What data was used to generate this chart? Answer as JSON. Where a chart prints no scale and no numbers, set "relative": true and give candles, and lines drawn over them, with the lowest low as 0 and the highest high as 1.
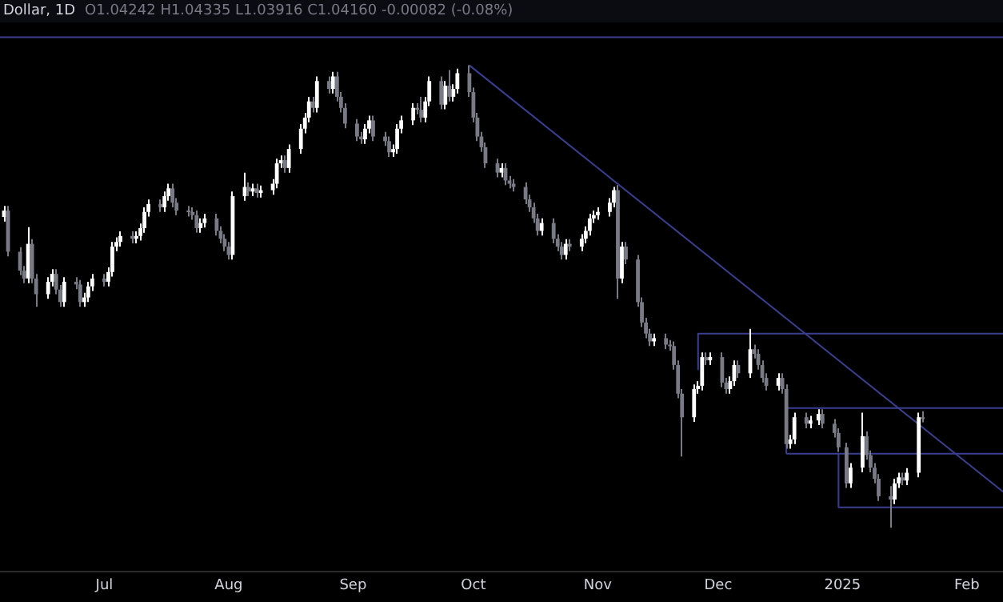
{
  "chart_data": {
    "type": "candlestick",
    "title": "Dollar, 1D",
    "subtitle": "O1.04242 H1.04335 L1.03916 C1.04160 -0.00082 (-0.08%)",
    "relative": true,
    "tick_labels": "x",
    "xlim": [
      "2024-06-05",
      "2025-02-10"
    ],
    "xticks": [
      {
        "value": "2024-07-01",
        "label": "Jul"
      },
      {
        "value": "2024-08-01",
        "label": "Aug"
      },
      {
        "value": "2024-09-01",
        "label": "Sep"
      },
      {
        "value": "2024-10-01",
        "label": "Oct"
      },
      {
        "value": "2024-11-01",
        "label": "Nov"
      },
      {
        "value": "2024-12-01",
        "label": "Dec"
      },
      {
        "value": "2025-01-01",
        "label": "2025"
      },
      {
        "value": "2025-02-01",
        "label": "Feb"
      }
    ],
    "x": [
      "2024-06-06",
      "2024-06-07",
      "2024-06-10",
      "2024-06-11",
      "2024-06-12",
      "2024-06-13",
      "2024-06-14",
      "2024-06-17",
      "2024-06-18",
      "2024-06-19",
      "2024-06-20",
      "2024-06-21",
      "2024-06-24",
      "2024-06-25",
      "2024-06-26",
      "2024-06-27",
      "2024-06-28",
      "2024-07-01",
      "2024-07-02",
      "2024-07-03",
      "2024-07-04",
      "2024-07-05",
      "2024-07-08",
      "2024-07-09",
      "2024-07-10",
      "2024-07-11",
      "2024-07-12",
      "2024-07-15",
      "2024-07-16",
      "2024-07-17",
      "2024-07-18",
      "2024-07-19",
      "2024-07-22",
      "2024-07-23",
      "2024-07-24",
      "2024-07-25",
      "2024-07-26",
      "2024-07-29",
      "2024-07-30",
      "2024-07-31",
      "2024-08-01",
      "2024-08-02",
      "2024-08-05",
      "2024-08-06",
      "2024-08-07",
      "2024-08-08",
      "2024-08-09",
      "2024-08-12",
      "2024-08-13",
      "2024-08-14",
      "2024-08-15",
      "2024-08-16",
      "2024-08-19",
      "2024-08-20",
      "2024-08-21",
      "2024-08-22",
      "2024-08-23",
      "2024-08-26",
      "2024-08-27",
      "2024-08-28",
      "2024-08-29",
      "2024-08-30",
      "2024-09-02",
      "2024-09-03",
      "2024-09-04",
      "2024-09-05",
      "2024-09-06",
      "2024-09-09",
      "2024-09-10",
      "2024-09-11",
      "2024-09-12",
      "2024-09-13",
      "2024-09-16",
      "2024-09-17",
      "2024-09-18",
      "2024-09-19",
      "2024-09-20",
      "2024-09-23",
      "2024-09-24",
      "2024-09-25",
      "2024-09-26",
      "2024-09-27",
      "2024-09-30",
      "2024-10-01",
      "2024-10-02",
      "2024-10-03",
      "2024-10-04",
      "2024-10-07",
      "2024-10-08",
      "2024-10-09",
      "2024-10-10",
      "2024-10-11",
      "2024-10-14",
      "2024-10-15",
      "2024-10-16",
      "2024-10-17",
      "2024-10-18",
      "2024-10-21",
      "2024-10-22",
      "2024-10-23",
      "2024-10-24",
      "2024-10-25",
      "2024-10-28",
      "2024-10-29",
      "2024-10-30",
      "2024-10-31",
      "2024-11-01",
      "2024-11-04",
      "2024-11-05",
      "2024-11-06",
      "2024-11-07",
      "2024-11-08",
      "2024-11-11",
      "2024-11-12",
      "2024-11-13",
      "2024-11-14",
      "2024-11-15",
      "2024-11-18",
      "2024-11-19",
      "2024-11-20",
      "2024-11-21",
      "2024-11-22",
      "2024-11-25",
      "2024-11-26",
      "2024-11-27",
      "2024-11-28",
      "2024-11-29",
      "2024-12-02",
      "2024-12-03",
      "2024-12-04",
      "2024-12-05",
      "2024-12-06",
      "2024-12-09",
      "2024-12-10",
      "2024-12-11",
      "2024-12-12",
      "2024-12-13",
      "2024-12-16",
      "2024-12-17",
      "2024-12-18",
      "2024-12-19",
      "2024-12-20",
      "2024-12-23",
      "2024-12-24",
      "2024-12-26",
      "2024-12-27",
      "2024-12-30",
      "2024-12-31",
      "2025-01-02",
      "2025-01-03",
      "2025-01-06",
      "2025-01-07",
      "2025-01-08",
      "2025-01-09",
      "2025-01-10",
      "2025-01-13",
      "2025-01-14",
      "2025-01-15",
      "2025-01-16",
      "2025-01-17",
      "2025-01-20",
      "2025-01-21"
    ],
    "ohlc": [
      [
        0.672,
        0.696,
        0.662,
        0.686
      ],
      [
        0.686,
        0.696,
        0.587,
        0.597
      ],
      [
        0.597,
        0.607,
        0.546,
        0.556
      ],
      [
        0.556,
        0.566,
        0.529,
        0.539
      ],
      [
        0.539,
        0.65,
        0.529,
        0.614
      ],
      [
        0.614,
        0.624,
        0.529,
        0.539
      ],
      [
        0.539,
        0.549,
        0.478,
        0.505
      ],
      [
        0.505,
        0.542,
        0.495,
        0.532
      ],
      [
        0.532,
        0.559,
        0.522,
        0.549
      ],
      [
        0.549,
        0.559,
        0.505,
        0.515
      ],
      [
        0.515,
        0.525,
        0.478,
        0.488
      ],
      [
        0.488,
        0.542,
        0.478,
        0.532
      ],
      [
        0.532,
        0.542,
        0.516,
        0.526
      ],
      [
        0.526,
        0.536,
        0.478,
        0.488
      ],
      [
        0.488,
        0.508,
        0.478,
        0.498
      ],
      [
        0.498,
        0.532,
        0.488,
        0.522
      ],
      [
        0.522,
        0.549,
        0.512,
        0.539
      ],
      [
        0.539,
        0.549,
        0.522,
        0.532
      ],
      [
        0.532,
        0.563,
        0.522,
        0.553
      ],
      [
        0.553,
        0.618,
        0.543,
        0.608
      ],
      [
        0.608,
        0.628,
        0.598,
        0.618
      ],
      [
        0.618,
        0.641,
        0.608,
        0.631
      ],
      [
        0.631,
        0.641,
        0.615,
        0.625
      ],
      [
        0.625,
        0.641,
        0.615,
        0.631
      ],
      [
        0.631,
        0.658,
        0.621,
        0.648
      ],
      [
        0.648,
        0.693,
        0.638,
        0.683
      ],
      [
        0.683,
        0.71,
        0.673,
        0.7
      ],
      [
        0.7,
        0.71,
        0.683,
        0.693
      ],
      [
        0.693,
        0.727,
        0.683,
        0.717
      ],
      [
        0.717,
        0.744,
        0.707,
        0.734
      ],
      [
        0.734,
        0.744,
        0.693,
        0.703
      ],
      [
        0.703,
        0.713,
        0.676,
        0.686
      ],
      [
        0.686,
        0.696,
        0.673,
        0.683
      ],
      [
        0.683,
        0.693,
        0.666,
        0.676
      ],
      [
        0.676,
        0.686,
        0.638,
        0.648
      ],
      [
        0.648,
        0.669,
        0.638,
        0.659
      ],
      [
        0.659,
        0.679,
        0.649,
        0.669
      ],
      [
        0.669,
        0.679,
        0.632,
        0.642
      ],
      [
        0.642,
        0.652,
        0.615,
        0.625
      ],
      [
        0.625,
        0.635,
        0.598,
        0.608
      ],
      [
        0.608,
        0.618,
        0.58,
        0.59
      ],
      [
        0.59,
        0.727,
        0.58,
        0.717
      ],
      [
        0.717,
        0.768,
        0.707,
        0.737
      ],
      [
        0.737,
        0.747,
        0.717,
        0.727
      ],
      [
        0.727,
        0.744,
        0.717,
        0.734
      ],
      [
        0.734,
        0.744,
        0.714,
        0.724
      ],
      [
        0.724,
        0.74,
        0.714,
        0.73
      ],
      [
        0.73,
        0.754,
        0.72,
        0.744
      ],
      [
        0.744,
        0.798,
        0.734,
        0.788
      ],
      [
        0.788,
        0.805,
        0.778,
        0.795
      ],
      [
        0.795,
        0.805,
        0.768,
        0.778
      ],
      [
        0.778,
        0.829,
        0.768,
        0.819
      ],
      [
        0.819,
        0.873,
        0.809,
        0.863
      ],
      [
        0.863,
        0.897,
        0.853,
        0.887
      ],
      [
        0.887,
        0.932,
        0.877,
        0.922
      ],
      [
        0.922,
        0.932,
        0.898,
        0.908
      ],
      [
        0.908,
        0.976,
        0.898,
        0.966
      ],
      [
        0.966,
        0.976,
        0.939,
        0.949
      ],
      [
        0.949,
        0.986,
        0.939,
        0.976
      ],
      [
        0.976,
        0.986,
        0.922,
        0.932
      ],
      [
        0.932,
        0.942,
        0.898,
        0.908
      ],
      [
        0.908,
        0.918,
        0.864,
        0.874
      ],
      [
        0.874,
        0.884,
        0.836,
        0.846
      ],
      [
        0.846,
        0.856,
        0.83,
        0.84
      ],
      [
        0.84,
        0.873,
        0.83,
        0.863
      ],
      [
        0.863,
        0.891,
        0.853,
        0.881
      ],
      [
        0.881,
        0.891,
        0.836,
        0.846
      ],
      [
        0.846,
        0.856,
        0.826,
        0.836
      ],
      [
        0.836,
        0.846,
        0.802,
        0.812
      ],
      [
        0.812,
        0.829,
        0.802,
        0.819
      ],
      [
        0.819,
        0.873,
        0.809,
        0.863
      ],
      [
        0.863,
        0.891,
        0.853,
        0.881
      ],
      [
        0.881,
        0.918,
        0.871,
        0.908
      ],
      [
        0.908,
        0.918,
        0.894,
        0.904
      ],
      [
        0.904,
        0.932,
        0.877,
        0.887
      ],
      [
        0.887,
        0.932,
        0.877,
        0.922
      ],
      [
        0.922,
        0.976,
        0.912,
        0.966
      ],
      [
        0.966,
        0.976,
        0.905,
        0.915
      ],
      [
        0.915,
        0.966,
        0.905,
        0.956
      ],
      [
        0.956,
        0.99,
        0.922,
        0.932
      ],
      [
        0.932,
        0.959,
        0.922,
        0.949
      ],
      [
        0.949,
        0.993,
        0.939,
        0.983
      ],
      [
        0.983,
        1,
        0.932,
        0.942
      ],
      [
        0.942,
        0.952,
        0.877,
        0.887
      ],
      [
        0.887,
        0.897,
        0.836,
        0.846
      ],
      [
        0.846,
        0.856,
        0.813,
        0.823
      ],
      [
        0.823,
        0.833,
        0.778,
        0.788
      ],
      [
        0.788,
        0.798,
        0.758,
        0.768
      ],
      [
        0.768,
        0.788,
        0.758,
        0.778
      ],
      [
        0.778,
        0.788,
        0.741,
        0.751
      ],
      [
        0.751,
        0.761,
        0.734,
        0.744
      ],
      [
        0.744,
        0.754,
        0.727,
        0.737
      ],
      [
        0.737,
        0.747,
        0.7,
        0.71
      ],
      [
        0.71,
        0.72,
        0.683,
        0.693
      ],
      [
        0.693,
        0.703,
        0.659,
        0.669
      ],
      [
        0.669,
        0.679,
        0.632,
        0.642
      ],
      [
        0.642,
        0.669,
        0.632,
        0.659
      ],
      [
        0.659,
        0.669,
        0.615,
        0.625
      ],
      [
        0.625,
        0.635,
        0.598,
        0.608
      ],
      [
        0.608,
        0.618,
        0.58,
        0.59
      ],
      [
        0.59,
        0.624,
        0.58,
        0.614
      ],
      [
        0.614,
        0.624,
        0.598,
        0.608
      ],
      [
        0.608,
        0.635,
        0.598,
        0.625
      ],
      [
        0.625,
        0.652,
        0.615,
        0.642
      ],
      [
        0.642,
        0.679,
        0.632,
        0.669
      ],
      [
        0.669,
        0.686,
        0.659,
        0.676
      ],
      [
        0.676,
        0.693,
        0.666,
        0.683
      ],
      [
        0.683,
        0.713,
        0.673,
        0.703
      ],
      [
        0.703,
        0.737,
        0.693,
        0.73
      ],
      [
        0.73,
        0.741,
        0.495,
        0.539
      ],
      [
        0.539,
        0.618,
        0.529,
        0.608
      ],
      [
        0.608,
        0.618,
        0.57,
        0.58
      ],
      [
        0.58,
        0.59,
        0.478,
        0.488
      ],
      [
        0.488,
        0.498,
        0.434,
        0.444
      ],
      [
        0.444,
        0.454,
        0.41,
        0.42
      ],
      [
        0.42,
        0.43,
        0.393,
        0.403
      ],
      [
        0.403,
        0.42,
        0.393,
        0.41
      ],
      [
        0.41,
        0.42,
        0.386,
        0.396
      ],
      [
        0.396,
        0.406,
        0.383,
        0.393
      ],
      [
        0.393,
        0.403,
        0.342,
        0.352
      ],
      [
        0.352,
        0.362,
        0.28,
        0.29
      ],
      [
        0.29,
        0.3,
        0.154,
        0.239
      ],
      [
        0.239,
        0.31,
        0.229,
        0.3
      ],
      [
        0.3,
        0.317,
        0.29,
        0.307
      ],
      [
        0.307,
        0.379,
        0.297,
        0.369
      ],
      [
        0.369,
        0.379,
        0.352,
        0.362
      ],
      [
        0.362,
        0.379,
        0.352,
        0.369
      ],
      [
        0.369,
        0.379,
        0.304,
        0.314
      ],
      [
        0.314,
        0.324,
        0.29,
        0.3
      ],
      [
        0.3,
        0.327,
        0.29,
        0.317
      ],
      [
        0.317,
        0.362,
        0.307,
        0.352
      ],
      [
        0.352,
        0.362,
        0.324,
        0.334
      ],
      [
        0.334,
        0.43,
        0.324,
        0.386
      ],
      [
        0.386,
        0.396,
        0.366,
        0.376
      ],
      [
        0.376,
        0.386,
        0.342,
        0.352
      ],
      [
        0.352,
        0.362,
        0.314,
        0.324
      ],
      [
        0.324,
        0.334,
        0.297,
        0.307
      ],
      [
        0.307,
        0.334,
        0.297,
        0.324
      ],
      [
        0.324,
        0.334,
        0.29,
        0.3
      ],
      [
        0.3,
        0.31,
        0.171,
        0.181
      ],
      [
        0.181,
        0.201,
        0.171,
        0.191
      ],
      [
        0.191,
        0.249,
        0.181,
        0.239
      ],
      [
        0.239,
        0.249,
        0.215,
        0.225
      ],
      [
        0.225,
        0.242,
        0.215,
        0.232
      ],
      [
        0.232,
        0.256,
        0.222,
        0.246
      ],
      [
        0.246,
        0.256,
        0.215,
        0.225
      ],
      [
        0.225,
        0.235,
        0.195,
        0.205
      ],
      [
        0.205,
        0.215,
        0.164,
        0.174
      ],
      [
        0.174,
        0.184,
        0.086,
        0.096
      ],
      [
        0.096,
        0.14,
        0.086,
        0.13
      ],
      [
        0.13,
        0.249,
        0.12,
        0.198
      ],
      [
        0.198,
        0.208,
        0.147,
        0.157
      ],
      [
        0.157,
        0.167,
        0.12,
        0.13
      ],
      [
        0.13,
        0.14,
        0.096,
        0.106
      ],
      [
        0.106,
        0.116,
        0.058,
        0.068
      ],
      [
        0.068,
        0.09,
        0,
        0.061
      ],
      [
        0.061,
        0.106,
        0.051,
        0.096
      ],
      [
        0.096,
        0.119,
        0.086,
        0.109
      ],
      [
        0.109,
        0.119,
        0.092,
        0.102
      ],
      [
        0.102,
        0.129,
        0.092,
        0.119
      ],
      [
        0.119,
        0.249,
        0.109,
        0.239
      ],
      [
        0.239,
        0.252,
        0.228,
        0.235
      ]
    ],
    "colors": [
      "#ffffff",
      "#787b86",
      "#787b86",
      "#787b86",
      "#ffffff",
      "#787b86",
      "#787b86",
      "#ffffff",
      "#ffffff",
      "#787b86",
      "#787b86",
      "#ffffff",
      "#787b86",
      "#787b86",
      "#ffffff",
      "#ffffff",
      "#ffffff",
      "#787b86",
      "#ffffff",
      "#ffffff",
      "#ffffff",
      "#ffffff",
      "#787b86",
      "#ffffff",
      "#ffffff",
      "#ffffff",
      "#ffffff",
      "#787b86",
      "#ffffff",
      "#ffffff",
      "#787b86",
      "#787b86",
      "#787b86",
      "#787b86",
      "#787b86",
      "#ffffff",
      "#ffffff",
      "#787b86",
      "#787b86",
      "#787b86",
      "#787b86",
      "#ffffff",
      "#ffffff",
      "#787b86",
      "#ffffff",
      "#787b86",
      "#ffffff",
      "#ffffff",
      "#ffffff",
      "#ffffff",
      "#787b86",
      "#ffffff",
      "#ffffff",
      "#ffffff",
      "#ffffff",
      "#787b86",
      "#ffffff",
      "#787b86",
      "#ffffff",
      "#787b86",
      "#787b86",
      "#787b86",
      "#787b86",
      "#787b86",
      "#ffffff",
      "#ffffff",
      "#787b86",
      "#787b86",
      "#787b86",
      "#ffffff",
      "#ffffff",
      "#ffffff",
      "#ffffff",
      "#787b86",
      "#787b86",
      "#ffffff",
      "#ffffff",
      "#787b86",
      "#ffffff",
      "#787b86",
      "#ffffff",
      "#ffffff",
      "#787b86",
      "#787b86",
      "#787b86",
      "#787b86",
      "#787b86",
      "#787b86",
      "#ffffff",
      "#787b86",
      "#787b86",
      "#787b86",
      "#787b86",
      "#787b86",
      "#787b86",
      "#787b86",
      "#ffffff",
      "#787b86",
      "#787b86",
      "#787b86",
      "#ffffff",
      "#787b86",
      "#ffffff",
      "#ffffff",
      "#ffffff",
      "#ffffff",
      "#ffffff",
      "#ffffff",
      "#ffffff",
      "#787b86",
      "#ffffff",
      "#787b86",
      "#787b86",
      "#787b86",
      "#787b86",
      "#787b86",
      "#ffffff",
      "#787b86",
      "#787b86",
      "#787b86",
      "#787b86",
      "#787b86",
      "#ffffff",
      "#ffffff",
      "#ffffff",
      "#787b86",
      "#ffffff",
      "#787b86",
      "#787b86",
      "#ffffff",
      "#ffffff",
      "#787b86",
      "#ffffff",
      "#787b86",
      "#787b86",
      "#787b86",
      "#787b86",
      "#ffffff",
      "#787b86",
      "#787b86",
      "#ffffff",
      "#ffffff",
      "#787b86",
      "#ffffff",
      "#ffffff",
      "#787b86",
      "#787b86",
      "#787b86",
      "#787b86",
      "#ffffff",
      "#ffffff",
      "#787b86",
      "#787b86",
      "#787b86",
      "#787b86",
      "#787b86",
      "#ffffff",
      "#ffffff",
      "#787b86",
      "#ffffff",
      "#ffffff",
      "#787b86"
    ],
    "series": [
      {
        "type": "line",
        "color": "#3b3f8f",
        "x": [
          "2024-09-30",
          "2025-02-10"
        ],
        "values": [
          1,
          0.078
        ]
      },
      {
        "type": "line",
        "color": "#3b3f8f",
        "x": [
          "2024-11-26",
          "2024-11-26",
          "2025-02-10"
        ],
        "values": [
          0.341,
          0.42,
          0.42
        ]
      },
      {
        "type": "line",
        "color": "#3b3f8f",
        "x": [
          "2024-12-18",
          "2024-12-18",
          "2025-02-10"
        ],
        "values": [
          0.16,
          0.259,
          0.259
        ]
      },
      {
        "type": "line",
        "color": "#3b3f8f",
        "x": [
          "2024-12-18",
          "2025-02-10"
        ],
        "values": [
          0.16,
          0.16
        ]
      },
      {
        "type": "line",
        "color": "#3b3f8f",
        "x": [
          "2024-12-31",
          "2024-12-31",
          "2025-02-10"
        ],
        "values": [
          0.16,
          0.044,
          0.044
        ]
      }
    ],
    "ref_lines": [
      {
        "axis": "y",
        "value": 1.061,
        "color": "#3b3f8f"
      }
    ]
  }
}
